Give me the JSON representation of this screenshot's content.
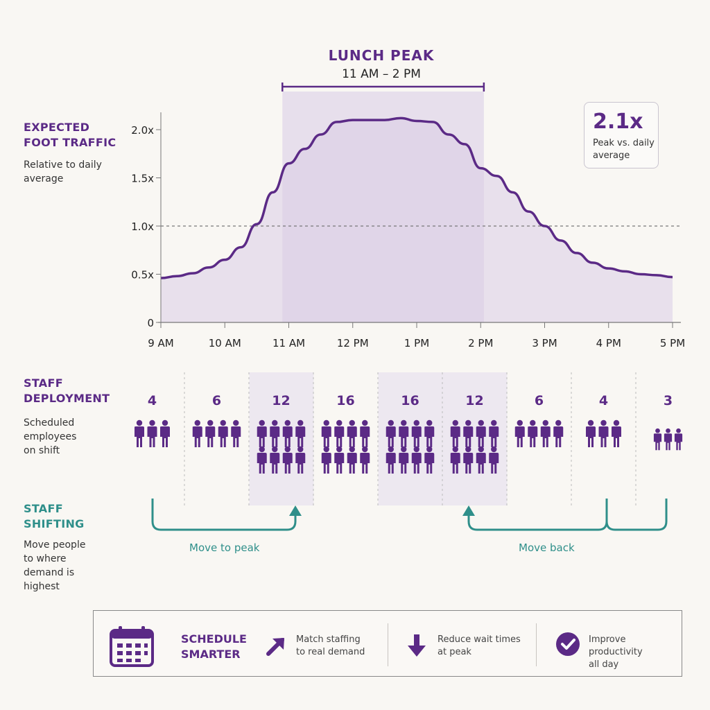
{
  "colors": {
    "purple": "#5b2a86",
    "teal": "#2f8f8a",
    "area_fill": "#e2d8ea",
    "peak_band": "#d9cce6",
    "background": "#f9f7f3"
  },
  "traffic_section": {
    "title": "EXPECTED\nFOOT TRAFFIC",
    "subtitle": "Relative to daily\naverage"
  },
  "lunch_peak": {
    "title": "LUNCH PEAK",
    "range": "11 AM – 2 PM"
  },
  "ratio_callout": {
    "value": "2.1x",
    "label": "Peak vs. daily\naverage"
  },
  "chart_data": {
    "type": "area",
    "x_labels": [
      "9 AM",
      "10 AM",
      "11 AM",
      "12 PM",
      "1 PM",
      "2 PM",
      "3 PM",
      "4 PM",
      "5 PM"
    ],
    "y_tick_labels": [
      "0",
      "0.5x",
      "1.0x",
      "1.5x",
      "2.0x"
    ],
    "y_ticks": [
      0,
      0.5,
      1.0,
      1.5,
      2.0
    ],
    "ylim": [
      0,
      2.2
    ],
    "xlim": [
      9,
      17
    ],
    "reference_line": 1.0,
    "peak_band": [
      10.9,
      14.05
    ],
    "x": [
      9.0,
      9.25,
      9.5,
      9.75,
      10.0,
      10.25,
      10.5,
      10.75,
      11.0,
      11.25,
      11.5,
      11.75,
      12.0,
      12.25,
      12.5,
      12.75,
      13.0,
      13.25,
      13.5,
      13.75,
      14.0,
      14.25,
      14.5,
      14.75,
      15.0,
      15.25,
      15.5,
      15.75,
      16.0,
      16.25,
      16.5,
      16.75,
      17.0
    ],
    "y": [
      0.46,
      0.48,
      0.51,
      0.57,
      0.65,
      0.78,
      1.02,
      1.35,
      1.65,
      1.8,
      1.95,
      2.08,
      2.1,
      2.1,
      2.1,
      2.12,
      2.09,
      2.08,
      1.95,
      1.85,
      1.6,
      1.52,
      1.35,
      1.15,
      1.0,
      0.85,
      0.72,
      0.62,
      0.56,
      0.53,
      0.5,
      0.49,
      0.47
    ]
  },
  "staff_section": {
    "title": "STAFF\nDEPLOYMENT",
    "subtitle": "Scheduled\nemployees\non shift",
    "counts": [
      4,
      6,
      12,
      16,
      16,
      12,
      6,
      4,
      3
    ],
    "highlighted": [
      false,
      false,
      true,
      false,
      true,
      true,
      false,
      false,
      false
    ]
  },
  "shift_section": {
    "title": "STAFF\nSHIFTING",
    "subtitle": "Move people\nto where\ndemand is\nhighest",
    "move_to_peak": "Move to peak",
    "move_back": "Move back"
  },
  "footer": {
    "title": "SCHEDULE\nSMARTER",
    "icon": "calendar-icon",
    "items": [
      {
        "icon": "arrow-up-right-icon",
        "text": "Match staffing\nto real demand"
      },
      {
        "icon": "arrow-down-icon",
        "text": "Reduce wait times\nat peak"
      },
      {
        "icon": "check-circle-icon",
        "text": "Improve productivity\nall day"
      }
    ]
  }
}
